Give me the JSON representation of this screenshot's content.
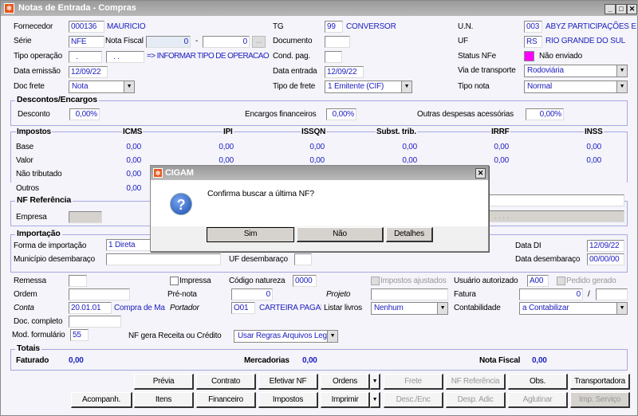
{
  "window": {
    "title": "Notas de Entrada - Compras"
  },
  "header": {
    "fornecedor": {
      "label": "Fornecedor",
      "code": "000136",
      "name": "MAURICIO"
    },
    "tg": {
      "label": "TG",
      "code": "99",
      "name": "CONVERSOR"
    },
    "un": {
      "label": "U.N.",
      "code": "003",
      "name": "ABYZ PARTICIPAÇÕES E"
    },
    "serie": {
      "label": "Série",
      "value": "NFE"
    },
    "nota_fiscal": {
      "label": "Nota Fiscal",
      "value": "0",
      "sep": "-",
      "value2": "0",
      "btn": "..."
    },
    "documento": {
      "label": "Documento",
      "value": ""
    },
    "uf": {
      "label": "UF",
      "code": "RS",
      "name": "RIO GRANDE DO SUL"
    },
    "tipo_operacao": {
      "label": "Tipo operação",
      "value1": ".",
      "value2": ". .",
      "hint": "=> INFORMAR TIPO DE OPERACAO"
    },
    "cond_pag": {
      "label": "Cond. pag.",
      "value": ""
    },
    "status_nfe": {
      "label": "Status NFe",
      "color": "#ff00ff",
      "text": "Não enviado"
    },
    "data_emissao": {
      "label": "Data emissão",
      "value": "12/09/22"
    },
    "data_entrada": {
      "label": "Data entrada",
      "value": "12/09/22"
    },
    "via_transporte": {
      "label": "Via de transporte",
      "value": "Rodoviária"
    },
    "doc_frete": {
      "label": "Doc frete",
      "value": "Nota"
    },
    "tipo_frete": {
      "label": "Tipo de frete",
      "value": "1 Emitente (CIF)"
    },
    "tipo_nota": {
      "label": "Tipo nota",
      "value": "Normal"
    }
  },
  "descontos": {
    "title": "Descontos/Encargos",
    "desconto": {
      "label": "Desconto",
      "value": "0,00%"
    },
    "encargos": {
      "label": "Encargos financeiros",
      "value": "0,00%"
    },
    "outras": {
      "label": "Outras despesas acessórias",
      "value": "0,00%"
    }
  },
  "impostos": {
    "title": "Impostos",
    "columns": [
      "ICMS",
      "IPI",
      "ISSQN",
      "Subst. trib.",
      "IRRF",
      "INSS"
    ],
    "rows": [
      {
        "label": "Base",
        "values": [
          "0,00",
          "0,00",
          "0,00",
          "0,00",
          "0,00",
          "0,00"
        ]
      },
      {
        "label": "Valor",
        "values": [
          "0,00",
          "0,00",
          "0,00",
          "0,00",
          "0,00",
          "0,00"
        ]
      },
      {
        "label": "Não tributado",
        "values": [
          "0,00"
        ]
      },
      {
        "label": "Outros",
        "values": [
          "0,00"
        ]
      }
    ]
  },
  "nf_referencia": {
    "title": "NF Referência",
    "empresa_label": "Empresa",
    "dots": ". . . ."
  },
  "importacao": {
    "title": "Importação",
    "forma": {
      "label": "Forma de importação",
      "value": "1 Direta"
    },
    "municipio": {
      "label": "Município desembaraço",
      "value": ""
    },
    "uf": {
      "label": "UF desembaraço",
      "value": ""
    },
    "data_di": {
      "label": "Data DI",
      "value": "12/09/22"
    },
    "data_desembaraco": {
      "label": "Data desembaraço",
      "value": "00/00/00"
    }
  },
  "misc": {
    "remessa": {
      "label": "Remessa",
      "value": ""
    },
    "impressa": {
      "label": "Impressa",
      "checked": false
    },
    "codigo_natureza": {
      "label": "Código natureza",
      "value": "0000"
    },
    "impostos_ajustados": {
      "label": "Impostos ajustados",
      "checked": false
    },
    "usuario_autorizado": {
      "label": "Usuário autorizado",
      "value": "A00"
    },
    "pedido_gerado": {
      "label": "Pedido gerado",
      "checked": false
    },
    "ordem": {
      "label": "Ordem",
      "value": ""
    },
    "pre_nota": {
      "label": "Pré-nota",
      "value": "0"
    },
    "projeto": {
      "label": "Projeto",
      "value": ""
    },
    "fatura": {
      "label": "Fatura",
      "value": "0",
      "sep": "/",
      "value2": ""
    },
    "conta": {
      "label": "Conta",
      "code": "20.01.01",
      "name": "Compra de Ma"
    },
    "portador": {
      "label": "Portador",
      "code": "O01",
      "name": "CARTEIRA PAGAMI"
    },
    "listar_livros": {
      "label": "Listar livros",
      "value": "Nenhum"
    },
    "contabilidade": {
      "label": "Contabilidade",
      "value": "a Contabilizar"
    },
    "doc_completo": {
      "label": "Doc. completo",
      "value": ""
    },
    "mod_formulario": {
      "label": "Mod. formulário",
      "value": "55"
    },
    "nf_gera": {
      "label": "NF gera Receita ou Crédito",
      "value": "Usar Regras Arquivos Legais"
    }
  },
  "totais": {
    "title": "Totais",
    "faturado": {
      "label": "Faturado",
      "value": "0,00"
    },
    "mercadorias": {
      "label": "Mercadorias",
      "value": "0,00"
    },
    "nota_fiscal": {
      "label": "Nota Fiscal",
      "value": "0,00"
    }
  },
  "buttons": {
    "previa": "Prévia",
    "contrato": "Contrato",
    "efetivar": "Efetivar NF",
    "ordens": "Ordens",
    "frete": "Frete",
    "nf_ref": "NF Referência",
    "obs": "Obs.",
    "transportadora": "Transportadora",
    "acompanh": "Acompanh.",
    "itens": "Itens",
    "financeiro": "Financeiro",
    "impostos": "Impostos",
    "imprimir": "Imprimir",
    "desc_enc": "Desc./Enc",
    "desp_adic": "Desp. Adic",
    "aglutinar": "Aglutinar",
    "imp_servico": "Imp. Serviço"
  },
  "dialog": {
    "title": "CIGAM",
    "message": "Confirma buscar a última NF?",
    "yes": "Sim",
    "no": "Não",
    "details": "Detalhes"
  }
}
